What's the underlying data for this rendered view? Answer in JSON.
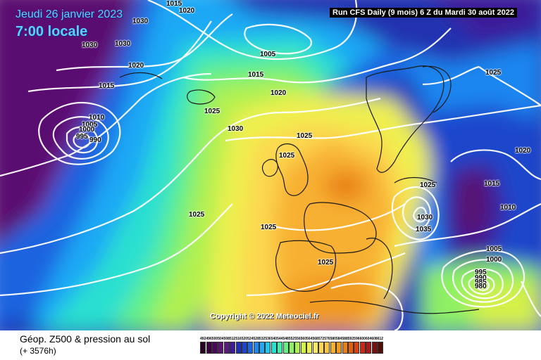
{
  "header": {
    "date": "Jeudi 26 janvier 2023",
    "time": "7:00 locale",
    "run": "Run CFS Daily (9 mois) 6 Z du Mardi 30 août 2022"
  },
  "copyright": "Copyright © 2022 Meteociel.fr",
  "footer": {
    "title": "Géop. Z500 & pression au sol",
    "subtitle": "(+ 3576h)"
  },
  "isobar_labels": [
    "1015",
    "1020",
    "1030",
    "1030",
    "1030",
    "1020",
    "1015",
    "1005",
    "1015",
    "1020",
    "1025",
    "1030",
    "1010",
    "1005",
    "1000",
    "995",
    "990",
    "1025",
    "1025",
    "1025",
    "1025",
    "1025",
    "1025",
    "1030",
    "1035",
    "1015",
    "1010",
    "1005",
    "1000",
    "995",
    "990",
    "985",
    "980",
    "1020",
    "1025"
  ],
  "scale": {
    "labels": [
      "492",
      "496",
      "500",
      "504",
      "508",
      "512",
      "516",
      "520",
      "524",
      "528",
      "532",
      "536",
      "540",
      "544",
      "548",
      "552",
      "556",
      "560",
      "564",
      "568",
      "572",
      "576",
      "580",
      "584",
      "588",
      "592",
      "596",
      "600",
      "604",
      "608",
      "612"
    ],
    "colors": [
      "#2b0027",
      "#3b0040",
      "#4a0a5a",
      "#5a1470",
      "#5c1a80",
      "#3c1c9a",
      "#2030b0",
      "#1e46cc",
      "#1e64e0",
      "#1e86f0",
      "#1ea8f5",
      "#20c8ee",
      "#2ae0d0",
      "#44ecaa",
      "#66f084",
      "#8ef064",
      "#b0f050",
      "#d4f04a",
      "#eef050",
      "#fae860",
      "#fcd850",
      "#fcc440",
      "#f8b030",
      "#f09a20",
      "#e88018",
      "#e06010",
      "#d84010",
      "#c82818",
      "#a81818",
      "#781010",
      "#501008"
    ]
  }
}
